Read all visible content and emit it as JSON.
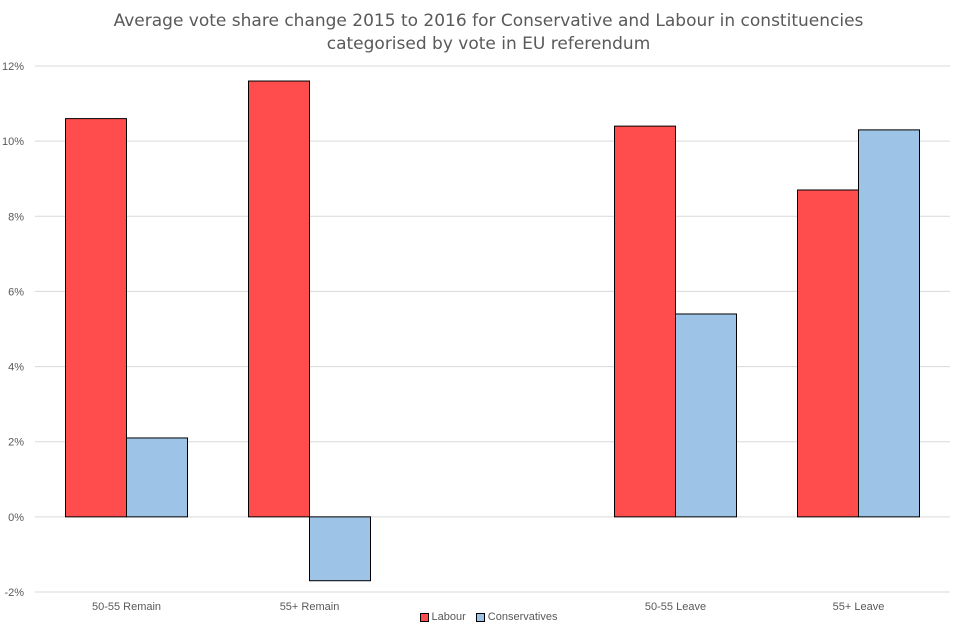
{
  "title_lines": [
    "Average vote share change 2015 to 2016 for Conservative and Labour in constituencies",
    "categorised by vote in EU referendum"
  ],
  "chart_data": {
    "type": "bar",
    "title": "Average vote share change 2015 to 2016 for Conservative and Labour in constituencies categorised by vote in EU referendum",
    "categories": [
      "50-55 Remain",
      "55+ Remain",
      "",
      "50-55 Leave",
      "55+ Leave"
    ],
    "series": [
      {
        "name": "Labour",
        "color": "#ff4d4d",
        "values": [
          10.6,
          11.6,
          null,
          10.4,
          8.7
        ]
      },
      {
        "name": "Conservatives",
        "color": "#9dc3e6",
        "values": [
          2.1,
          -1.7,
          null,
          5.4,
          10.3
        ]
      }
    ],
    "ylim": [
      -2,
      12
    ],
    "yticks": [
      -2,
      0,
      2,
      4,
      6,
      8,
      10,
      12
    ],
    "ytick_labels": [
      "-2%",
      "0%",
      "2%",
      "4%",
      "6%",
      "8%",
      "10%",
      "12%"
    ],
    "grid": true,
    "legend_position": "bottom",
    "xlabel": "",
    "ylabel": ""
  },
  "legend": {
    "labour": "Labour",
    "conservatives": "Conservatives"
  }
}
